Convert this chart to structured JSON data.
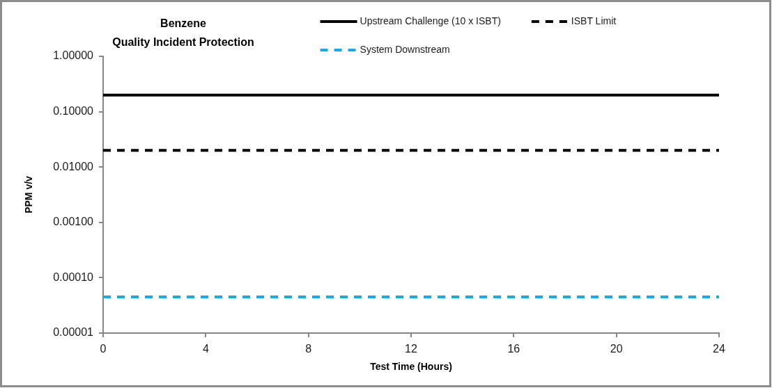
{
  "chart_data": {
    "type": "line",
    "title": "Benzene",
    "subtitle": "Quality Incident Protection",
    "xlabel": "Test Time (Hours)",
    "ylabel": "PPM v/v",
    "x": [
      0,
      24
    ],
    "series": [
      {
        "name": "Upstream Challenge (10 x ISBT)",
        "color": "#000000",
        "values": [
          0.2,
          0.2
        ],
        "line_style": "solid"
      },
      {
        "name": "ISBT Limit",
        "color": "#000000",
        "values": [
          0.02,
          0.02
        ],
        "line_style": "dashed"
      },
      {
        "name": "System Downstream",
        "color": "#1aa9e6",
        "values": [
          4.5e-05,
          4.5e-05
        ],
        "line_style": "dashed"
      }
    ],
    "xlim": [
      0,
      24
    ],
    "xticks": [
      0,
      4,
      8,
      12,
      16,
      20,
      24
    ],
    "ylim": [
      1e-05,
      1
    ],
    "yticks": [
      {
        "value": 1e-05,
        "label": "0.00001"
      },
      {
        "value": 0.0001,
        "label": "0.00010"
      },
      {
        "value": 0.001,
        "label": "0.00100"
      },
      {
        "value": 0.01,
        "label": "0.01000"
      },
      {
        "value": 0.1,
        "label": "0.10000"
      },
      {
        "value": 1,
        "label": "1.00000"
      }
    ],
    "log": "y",
    "grid": false,
    "legend": "top",
    "marker": "none"
  }
}
